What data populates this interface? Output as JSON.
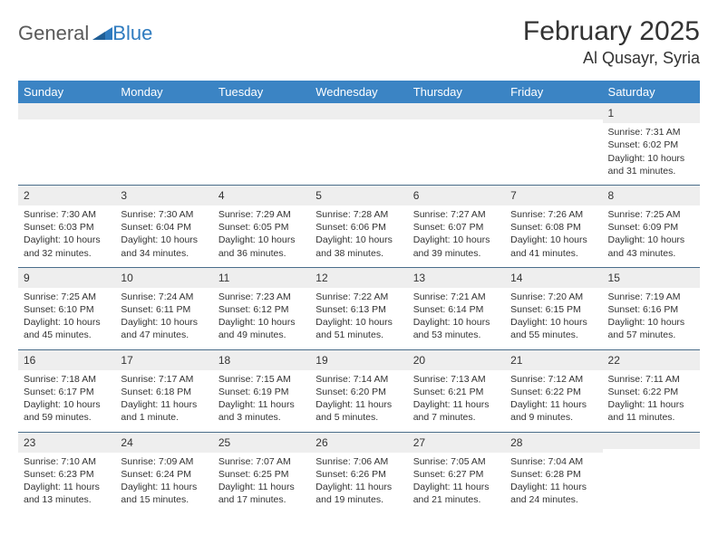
{
  "logo": {
    "text1": "General",
    "text2": "Blue"
  },
  "title": "February 2025",
  "location": "Al Qusayr, Syria",
  "columns": [
    "Sunday",
    "Monday",
    "Tuesday",
    "Wednesday",
    "Thursday",
    "Friday",
    "Saturday"
  ],
  "colors": {
    "header_bg": "#3b84c4",
    "header_text": "#ffffff",
    "row_divider": "#4a6d8a",
    "weeknum_bg": "#eeeeee",
    "text": "#333333",
    "logo_gray": "#5a5a5a",
    "logo_blue": "#2f7bbf"
  },
  "weeks": [
    [
      null,
      null,
      null,
      null,
      null,
      null,
      {
        "n": "1",
        "sr": "7:31 AM",
        "ss": "6:02 PM",
        "dl": "10 hours and 31 minutes."
      }
    ],
    [
      {
        "n": "2",
        "sr": "7:30 AM",
        "ss": "6:03 PM",
        "dl": "10 hours and 32 minutes."
      },
      {
        "n": "3",
        "sr": "7:30 AM",
        "ss": "6:04 PM",
        "dl": "10 hours and 34 minutes."
      },
      {
        "n": "4",
        "sr": "7:29 AM",
        "ss": "6:05 PM",
        "dl": "10 hours and 36 minutes."
      },
      {
        "n": "5",
        "sr": "7:28 AM",
        "ss": "6:06 PM",
        "dl": "10 hours and 38 minutes."
      },
      {
        "n": "6",
        "sr": "7:27 AM",
        "ss": "6:07 PM",
        "dl": "10 hours and 39 minutes."
      },
      {
        "n": "7",
        "sr": "7:26 AM",
        "ss": "6:08 PM",
        "dl": "10 hours and 41 minutes."
      },
      {
        "n": "8",
        "sr": "7:25 AM",
        "ss": "6:09 PM",
        "dl": "10 hours and 43 minutes."
      }
    ],
    [
      {
        "n": "9",
        "sr": "7:25 AM",
        "ss": "6:10 PM",
        "dl": "10 hours and 45 minutes."
      },
      {
        "n": "10",
        "sr": "7:24 AM",
        "ss": "6:11 PM",
        "dl": "10 hours and 47 minutes."
      },
      {
        "n": "11",
        "sr": "7:23 AM",
        "ss": "6:12 PM",
        "dl": "10 hours and 49 minutes."
      },
      {
        "n": "12",
        "sr": "7:22 AM",
        "ss": "6:13 PM",
        "dl": "10 hours and 51 minutes."
      },
      {
        "n": "13",
        "sr": "7:21 AM",
        "ss": "6:14 PM",
        "dl": "10 hours and 53 minutes."
      },
      {
        "n": "14",
        "sr": "7:20 AM",
        "ss": "6:15 PM",
        "dl": "10 hours and 55 minutes."
      },
      {
        "n": "15",
        "sr": "7:19 AM",
        "ss": "6:16 PM",
        "dl": "10 hours and 57 minutes."
      }
    ],
    [
      {
        "n": "16",
        "sr": "7:18 AM",
        "ss": "6:17 PM",
        "dl": "10 hours and 59 minutes."
      },
      {
        "n": "17",
        "sr": "7:17 AM",
        "ss": "6:18 PM",
        "dl": "11 hours and 1 minute."
      },
      {
        "n": "18",
        "sr": "7:15 AM",
        "ss": "6:19 PM",
        "dl": "11 hours and 3 minutes."
      },
      {
        "n": "19",
        "sr": "7:14 AM",
        "ss": "6:20 PM",
        "dl": "11 hours and 5 minutes."
      },
      {
        "n": "20",
        "sr": "7:13 AM",
        "ss": "6:21 PM",
        "dl": "11 hours and 7 minutes."
      },
      {
        "n": "21",
        "sr": "7:12 AM",
        "ss": "6:22 PM",
        "dl": "11 hours and 9 minutes."
      },
      {
        "n": "22",
        "sr": "7:11 AM",
        "ss": "6:22 PM",
        "dl": "11 hours and 11 minutes."
      }
    ],
    [
      {
        "n": "23",
        "sr": "7:10 AM",
        "ss": "6:23 PM",
        "dl": "11 hours and 13 minutes."
      },
      {
        "n": "24",
        "sr": "7:09 AM",
        "ss": "6:24 PM",
        "dl": "11 hours and 15 minutes."
      },
      {
        "n": "25",
        "sr": "7:07 AM",
        "ss": "6:25 PM",
        "dl": "11 hours and 17 minutes."
      },
      {
        "n": "26",
        "sr": "7:06 AM",
        "ss": "6:26 PM",
        "dl": "11 hours and 19 minutes."
      },
      {
        "n": "27",
        "sr": "7:05 AM",
        "ss": "6:27 PM",
        "dl": "11 hours and 21 minutes."
      },
      {
        "n": "28",
        "sr": "7:04 AM",
        "ss": "6:28 PM",
        "dl": "11 hours and 24 minutes."
      },
      null
    ]
  ],
  "labels": {
    "sunrise": "Sunrise: ",
    "sunset": "Sunset: ",
    "daylight": "Daylight: "
  }
}
